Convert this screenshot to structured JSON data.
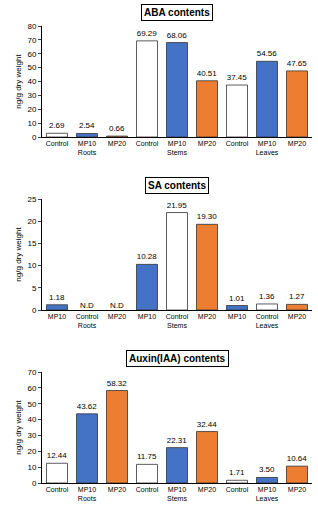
{
  "chart_data": [
    {
      "type": "bar",
      "title": "ABA contents",
      "y_label": "ng/g dry weight",
      "categories": [
        "Roots",
        "Stems",
        "Leaves"
      ],
      "series": [
        {
          "name": "Control",
          "color": "#ffffff",
          "values": [
            2.69,
            69.29,
            37.45
          ]
        },
        {
          "name": "MP10",
          "color": "#4472c4",
          "values": [
            2.54,
            68.06,
            54.56
          ]
        },
        {
          "name": "MP20",
          "color": "#ed7d31",
          "values": [
            0.66,
            40.51,
            47.65
          ]
        }
      ],
      "ylim": [
        0,
        80
      ],
      "yticks": [
        0,
        10,
        20,
        30,
        40,
        50,
        60,
        70,
        80
      ],
      "grid": false,
      "data_labels": true
    },
    {
      "type": "bar",
      "title": "SA contents",
      "y_label": "ng/g dry weight",
      "categories": [
        "Roots",
        "Stems",
        "Leaves"
      ],
      "series": [
        {
          "name": "Control",
          "color": "#ffffff",
          "values": [
            null,
            21.95,
            1.36
          ],
          "value_labels": [
            "N.D",
            "21.95",
            "1.36"
          ]
        },
        {
          "name": "MP10",
          "color": "#4472c4",
          "values": [
            1.18,
            10.28,
            1.01
          ]
        },
        {
          "name": "MP20",
          "color": "#ed7d31",
          "values": [
            null,
            19.3,
            1.27
          ],
          "value_labels": [
            "N.D",
            "19.30",
            "1.27"
          ]
        }
      ],
      "ylim": [
        0,
        25
      ],
      "yticks": [
        0,
        5,
        10,
        15,
        20,
        25
      ],
      "grid": false,
      "data_labels": true
    },
    {
      "type": "bar",
      "title": "Auxin(IAA) contents",
      "y_label": "ng/g dry weight",
      "categories": [
        "Roots",
        "Stems",
        "Leaves"
      ],
      "series": [
        {
          "name": "Control",
          "color": "#ffffff",
          "values": [
            12.44,
            11.75,
            1.71
          ]
        },
        {
          "name": "MP10",
          "color": "#4472c4",
          "values": [
            43.62,
            22.31,
            3.5
          ],
          "value_labels": [
            "43.62",
            "22.31",
            "3.50"
          ]
        },
        {
          "name": "MP20",
          "color": "#ed7d31",
          "values": [
            58.32,
            32.44,
            10.64
          ]
        }
      ],
      "ylim": [
        0,
        70
      ],
      "yticks": [
        0,
        10,
        20,
        30,
        40,
        50,
        60,
        70
      ],
      "grid": false,
      "data_labels": true
    }
  ]
}
